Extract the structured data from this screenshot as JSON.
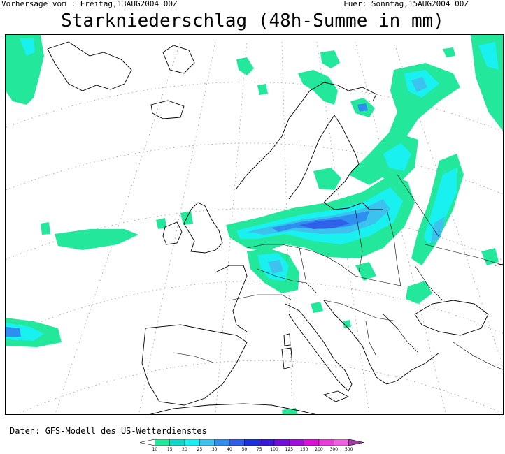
{
  "header": {
    "forecast_from": "Vorhersage vom : Freitag,13AUG2004 00Z",
    "valid_for": "Fuer: Sonntag,15AUG2004 00Z"
  },
  "title": "Starkniederschlag (48h-Summe in mm)",
  "footer": {
    "data_source": "Daten: GFS-Modell des US-Wetterdienstes"
  },
  "legend": {
    "levels": [
      "10",
      "15",
      "20",
      "25",
      "30",
      "40",
      "50",
      "75",
      "100",
      "125",
      "150",
      "200",
      "300",
      "500"
    ],
    "colors": [
      "#ffffff",
      "#23e79a",
      "#0fd7c5",
      "#19f1f1",
      "#3cc2ef",
      "#2e8ff0",
      "#2f60e7",
      "#1c31d9",
      "#3a1ad8",
      "#7010d8",
      "#a210d8",
      "#d812d8",
      "#e83cd8",
      "#f061e0",
      "#a23aa8"
    ]
  },
  "map": {
    "region": "Europe",
    "precip_colors": {
      "light": "#23e79a",
      "light2": "#19f1f1",
      "medium": "#3cc2ef",
      "heavy": "#2e8ff0",
      "very_heavy": "#2f60e7"
    }
  }
}
